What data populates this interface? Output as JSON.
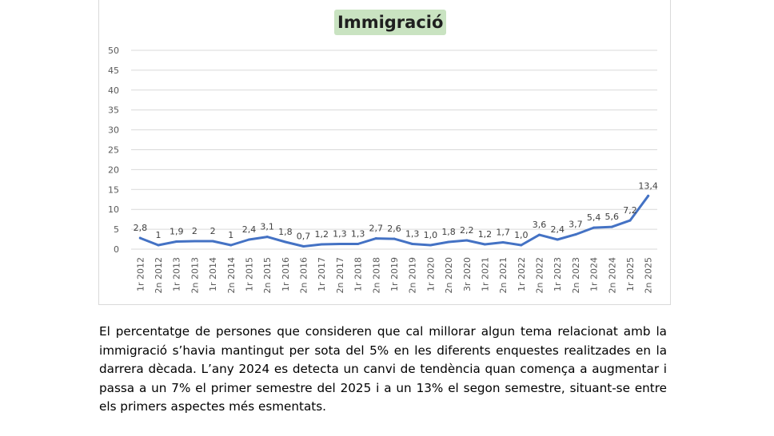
{
  "chart_data": {
    "type": "line",
    "title": "Immigració",
    "xlabel": "",
    "ylabel": "",
    "ylim": [
      0,
      50
    ],
    "yticks": [
      0,
      5,
      10,
      15,
      20,
      25,
      30,
      35,
      40,
      45,
      50
    ],
    "grid": true,
    "series_color": "#4472c4",
    "categories": [
      "1r 2012",
      "2n 2012",
      "1r 2013",
      "2n 2013",
      "1r 2014",
      "2n 2014",
      "1r 2015",
      "2n 2015",
      "1r 2016",
      "2n 2016",
      "1r 2017",
      "2n 2017",
      "1r 2018",
      "2n 2018",
      "1r 2019",
      "2n 2019",
      "1r 2020",
      "2n 2020",
      "3r 2020",
      "1r 2021",
      "2n 2021",
      "1r 2022",
      "2n 2022",
      "1r 2023",
      "2n 2023",
      "1r 2024",
      "2n 2024",
      "1r 2025",
      "2n 2025"
    ],
    "values": [
      2.8,
      1,
      1.9,
      2,
      2,
      1,
      2.4,
      3.1,
      1.8,
      0.7,
      1.2,
      1.3,
      1.3,
      2.7,
      2.6,
      1.3,
      1.0,
      1.8,
      2.2,
      1.2,
      1.7,
      1.0,
      3.6,
      2.4,
      3.7,
      5.4,
      5.6,
      7.2,
      13.4
    ],
    "labels": [
      "2,8",
      "1",
      "1,9",
      "2",
      "2",
      "1",
      "2,4",
      "3,1",
      "1,8",
      "0,7",
      "1,2",
      "1,3",
      "1,3",
      "2,7",
      "2,6",
      "1,3",
      "1,0",
      "1,8",
      "2,2",
      "1,2",
      "1,7",
      "1,0",
      "3,6",
      "2,4",
      "3,7",
      "5,4",
      "5,6",
      "7,2",
      "13,4"
    ]
  },
  "caption": "El percentatge de persones que consideren que cal millorar algun tema relacionat amb la immigració s’havia mantingut per sota del 5% en les diferents enquestes realitzades en la darrera dècada. L’any 2024 es detecta un canvi de tendència quan comença a augmentar i passa a un 7% el primer semestre del 2025 i a un 13% el segon semestre, situant-se entre els primers aspectes més esmentats."
}
